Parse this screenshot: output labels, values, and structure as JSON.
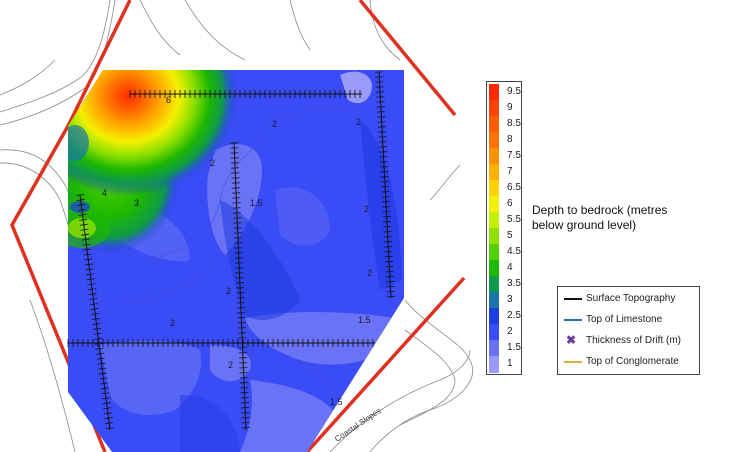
{
  "map": {
    "scale_title": "Depth to bedrock (metres below ground level)",
    "scale": [
      {
        "value": "9.5",
        "color": "#ff2a00"
      },
      {
        "value": "9",
        "color": "#ff4200"
      },
      {
        "value": "8.5",
        "color": "#ff5c00"
      },
      {
        "value": "8",
        "color": "#ff7400"
      },
      {
        "value": "7.5",
        "color": "#ff9000"
      },
      {
        "value": "7",
        "color": "#ffb000"
      },
      {
        "value": "6.5",
        "color": "#ffd200"
      },
      {
        "value": "6",
        "color": "#f4f000"
      },
      {
        "value": "5.5",
        "color": "#c2f000"
      },
      {
        "value": "5",
        "color": "#8fe000"
      },
      {
        "value": "4.5",
        "color": "#52d000"
      },
      {
        "value": "4",
        "color": "#1fb800"
      },
      {
        "value": "3.5",
        "color": "#0e9a4a"
      },
      {
        "value": "3",
        "color": "#1876a8"
      },
      {
        "value": "2.5",
        "color": "#1f3ee0"
      },
      {
        "value": "2",
        "color": "#3a4cf5"
      },
      {
        "value": "1.5",
        "color": "#6a72f5"
      },
      {
        "value": "1",
        "color": "#9a9af8"
      }
    ],
    "legend": [
      {
        "label": "Surface Topography",
        "symbol": "line",
        "color": "#111111"
      },
      {
        "label": "Top of Limestone",
        "symbol": "line",
        "color": "#2a6fb0"
      },
      {
        "label": "Thickness of Drift (m)",
        "symbol": "x",
        "color": "#6a3fa0"
      },
      {
        "label": "Top of Conglomerate",
        "symbol": "line",
        "color": "#e0b030"
      }
    ],
    "contour_labels": [
      "6",
      "2",
      "2",
      "2",
      "4",
      "1.5",
      "3",
      "2",
      "2",
      "2",
      "2",
      "1.5",
      "2",
      "1.5"
    ],
    "place_label": "Coastal Slopes"
  }
}
